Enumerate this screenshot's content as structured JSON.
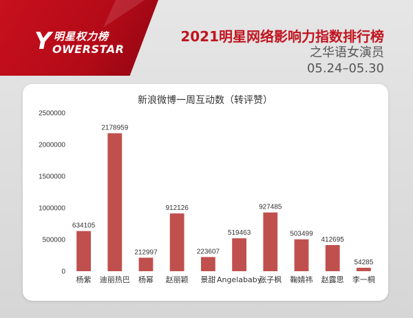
{
  "header": {
    "logo_cn": "明星权力榜",
    "logo_en": "OWERSTAR",
    "logo_y": "Y",
    "title": "2021明星网络影响力指数排行榜",
    "subtitle": "之华语女演员",
    "date_range": "05.24–05.30"
  },
  "colors": {
    "bar": "#c0504d",
    "brand_red": "#c0141f"
  },
  "chart_data": {
    "type": "bar",
    "title": "新浪微博一周互动数（转评赞）",
    "xlabel": "",
    "ylabel": "",
    "categories": [
      "杨紫",
      "迪丽热巴",
      "杨幂",
      "赵丽颖",
      "景甜",
      "Angelababy",
      "张子枫",
      "鞠婧祎",
      "赵露思",
      "李一桐"
    ],
    "values": [
      634105,
      2178959,
      212997,
      912126,
      223607,
      519463,
      927485,
      503499,
      412695,
      54285
    ],
    "data_labels": [
      "634105",
      "2178959",
      "212997",
      "912126",
      "223607",
      "519463",
      "927485",
      "503499",
      "412695",
      "54285"
    ],
    "ylim": [
      0,
      2500000
    ],
    "yticks": [
      "0",
      "500000",
      "1000000",
      "1500000",
      "2000000",
      "2500000"
    ],
    "grid": false,
    "legend": "none"
  }
}
